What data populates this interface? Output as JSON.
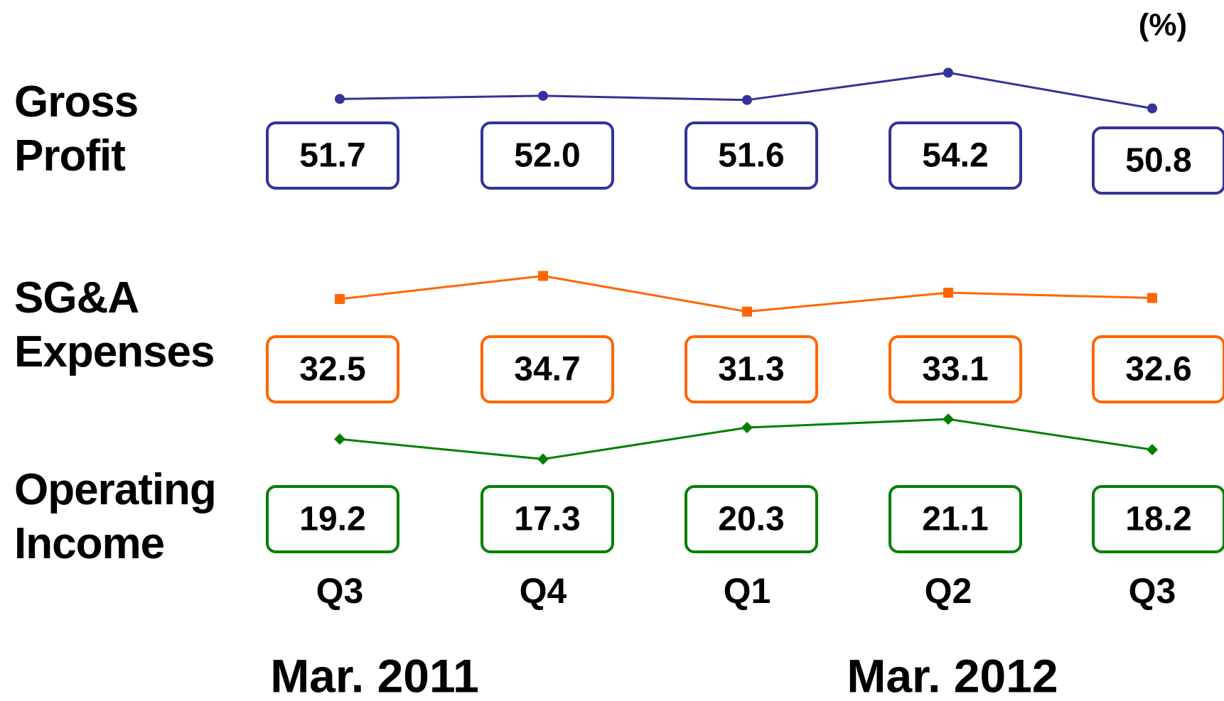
{
  "chart_data": {
    "type": "line",
    "unit_label": "(%)",
    "categories": [
      "Q3",
      "Q4",
      "Q1",
      "Q2",
      "Q3"
    ],
    "groups": [
      {
        "label": "Mar. 2011",
        "span": [
          0,
          1
        ]
      },
      {
        "label": "Mar. 2012",
        "span": [
          2,
          4
        ]
      }
    ],
    "series": [
      {
        "name": "Gross Profit",
        "color": "#333399",
        "marker": "circle",
        "values": [
          51.7,
          52.0,
          51.6,
          54.2,
          50.8
        ],
        "value_labels": [
          "51.7",
          "52.0",
          "51.6",
          "54.2",
          "50.8"
        ]
      },
      {
        "name": "SG&A Expenses",
        "color": "#ff6600",
        "marker": "square",
        "values": [
          32.5,
          34.7,
          31.3,
          33.1,
          32.6
        ],
        "value_labels": [
          "32.5",
          "34.7",
          "31.3",
          "33.1",
          "32.6"
        ]
      },
      {
        "name": "Operating Income",
        "color": "#008000",
        "marker": "diamond",
        "values": [
          19.2,
          17.3,
          20.3,
          21.1,
          18.2
        ],
        "value_labels": [
          "19.2",
          "17.3",
          "20.3",
          "21.1",
          "18.2"
        ]
      }
    ]
  }
}
